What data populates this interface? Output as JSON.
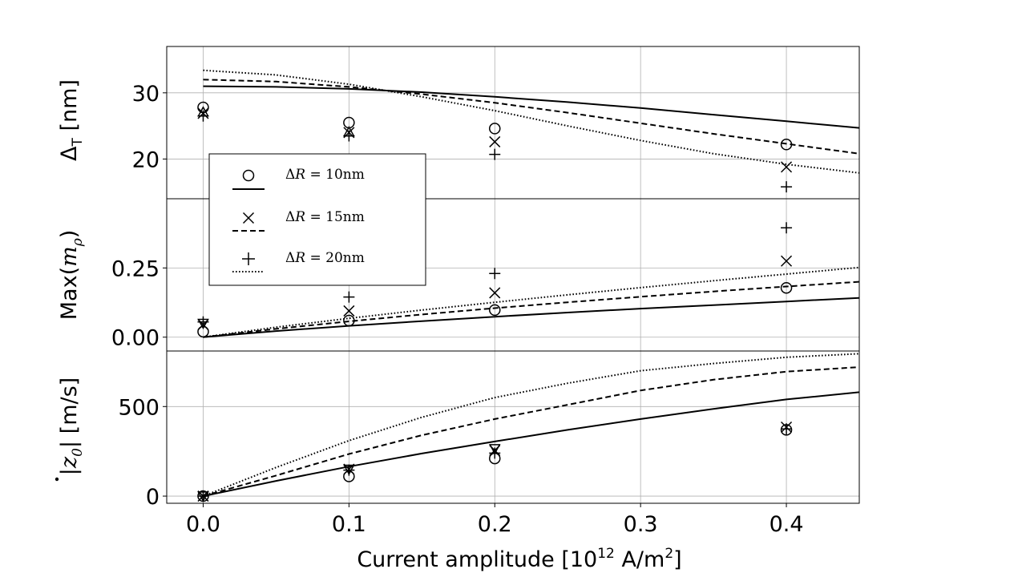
{
  "chart_data": [
    {
      "type": "line",
      "panel": "top",
      "ylabel": "Δ_T [nm]",
      "ylabel_main": "Δ",
      "ylabel_sub": "T",
      "ylabel_unit": " [nm]",
      "xlim": [
        -0.025,
        0.45
      ],
      "ylim": [
        14,
        37
      ],
      "yticks": [
        20,
        30
      ],
      "ytick_labels": [
        "20",
        "30"
      ],
      "grid": true,
      "series": [
        {
          "name": "ΔR = 10nm",
          "line_style": "solid",
          "line": {
            "x": [
              0,
              0.05,
              0.1,
              0.15,
              0.2,
              0.25,
              0.3,
              0.35,
              0.4,
              0.45
            ],
            "y": [
              31.0,
              30.9,
              30.6,
              30.1,
              29.4,
              28.6,
              27.7,
              26.7,
              25.7,
              24.7
            ]
          },
          "markers": [
            {
              "marker": "circle",
              "x": [
                0,
                0.1,
                0.2,
                0.4
              ],
              "y": [
                27.8,
                25.5,
                24.6,
                22.2
              ]
            }
          ]
        },
        {
          "name": "ΔR = 15nm",
          "line_style": "dashed",
          "line": {
            "x": [
              0,
              0.05,
              0.1,
              0.15,
              0.2,
              0.25,
              0.3,
              0.35,
              0.4,
              0.45
            ],
            "y": [
              32.0,
              31.7,
              30.9,
              29.8,
              28.5,
              27.0,
              25.4,
              23.8,
              22.3,
              20.8
            ]
          },
          "markers": [
            {
              "marker": "x",
              "x": [
                0,
                0.1,
                0.2,
                0.4
              ],
              "y": [
                26.9,
                24.0,
                22.6,
                18.8
              ]
            }
          ]
        },
        {
          "name": "ΔR = 20nm",
          "line_style": "dotted",
          "line": {
            "x": [
              0,
              0.05,
              0.1,
              0.15,
              0.2,
              0.25,
              0.3,
              0.35,
              0.4,
              0.45
            ],
            "y": [
              33.4,
              32.7,
              31.3,
              29.4,
              27.3,
              25.0,
              22.8,
              20.8,
              19.2,
              17.9
            ]
          },
          "markers": [
            {
              "marker": "plus",
              "x": [
                0,
                0.1,
                0.2,
                0.4
              ],
              "y": [
                26.5,
                23.5,
                20.7,
                15.8
              ]
            },
            {
              "marker": "triangle-up",
              "x": [
                0,
                0.1
              ],
              "y": [
                27.1,
                24.1
              ]
            }
          ]
        }
      ]
    },
    {
      "type": "line",
      "panel": "middle",
      "ylabel": "Max(m_ρ)",
      "ylabel_main": "Max(",
      "ylabel_var": "m",
      "ylabel_sub": "ρ",
      "ylabel_close": ")",
      "xlim": [
        -0.025,
        0.45
      ],
      "ylim": [
        -0.05,
        0.5
      ],
      "yticks": [
        0.0,
        0.25
      ],
      "ytick_labels": [
        "0.00",
        "0.25"
      ],
      "grid": true,
      "series": [
        {
          "name": "ΔR = 10nm",
          "line_style": "solid",
          "line": {
            "x": [
              0,
              0.05,
              0.1,
              0.15,
              0.2,
              0.25,
              0.3,
              0.35,
              0.4,
              0.45
            ],
            "y": [
              0,
              0.022,
              0.041,
              0.058,
              0.074,
              0.089,
              0.103,
              0.116,
              0.129,
              0.142
            ]
          },
          "markers": [
            {
              "marker": "circle",
              "x": [
                0,
                0.1,
                0.2,
                0.4
              ],
              "y": [
                0.02,
                0.06,
                0.098,
                0.178
              ]
            }
          ]
        },
        {
          "name": "ΔR = 15nm",
          "line_style": "dashed",
          "line": {
            "x": [
              0,
              0.05,
              0.1,
              0.15,
              0.2,
              0.25,
              0.3,
              0.35,
              0.4,
              0.45
            ],
            "y": [
              0,
              0.03,
              0.057,
              0.082,
              0.105,
              0.126,
              0.146,
              0.165,
              0.183,
              0.2
            ]
          },
          "markers": [
            {
              "marker": "x",
              "x": [
                0,
                0.1,
                0.2,
                0.4
              ],
              "y": [
                0.045,
                0.095,
                0.16,
                0.275
              ]
            }
          ]
        },
        {
          "name": "ΔR = 20nm",
          "line_style": "dotted",
          "line": {
            "x": [
              0,
              0.05,
              0.1,
              0.15,
              0.2,
              0.25,
              0.3,
              0.35,
              0.4,
              0.45
            ],
            "y": [
              0,
              0.036,
              0.068,
              0.098,
              0.126,
              0.153,
              0.179,
              0.204,
              0.228,
              0.252
            ]
          },
          "markers": [
            {
              "marker": "plus",
              "x": [
                0,
                0.1,
                0.2,
                0.4
              ],
              "y": [
                0.055,
                0.145,
                0.23,
                0.395
              ]
            },
            {
              "marker": "triangle-down",
              "x": [
                0
              ],
              "y": [
                0.05
              ]
            }
          ]
        }
      ]
    },
    {
      "type": "line",
      "panel": "bottom",
      "ylabel": "|ż_0| [m/s]",
      "ylabel_var": "z",
      "ylabel_sub": "0",
      "ylabel_unit": "| [m/s]",
      "xlabel": "Current amplitude [10^12 A/m^2]",
      "xlabel_prefix": "Current amplitude [10",
      "xlabel_exp": "12",
      "xlabel_mid": " A/m",
      "xlabel_exp2": "2",
      "xlabel_close": "]",
      "xlim": [
        -0.025,
        0.45
      ],
      "ylim": [
        -40,
        810
      ],
      "xticks": [
        0.0,
        0.1,
        0.2,
        0.3,
        0.4
      ],
      "xtick_labels": [
        "0.0",
        "0.1",
        "0.2",
        "0.3",
        "0.4"
      ],
      "yticks": [
        0,
        500
      ],
      "ytick_labels": [
        "0",
        "500"
      ],
      "grid": true,
      "series": [
        {
          "name": "ΔR = 10nm",
          "line_style": "solid",
          "line": {
            "x": [
              0,
              0.05,
              0.1,
              0.15,
              0.2,
              0.25,
              0.3,
              0.35,
              0.4,
              0.45
            ],
            "y": [
              0,
              85,
              165,
              238,
              305,
              370,
              430,
              487,
              540,
              580
            ]
          },
          "markers": [
            {
              "marker": "circle",
              "x": [
                0,
                0.1,
                0.2,
                0.4
              ],
              "y": [
                0,
                110,
                210,
                370
              ]
            }
          ]
        },
        {
          "name": "ΔR = 15nm",
          "line_style": "dashed",
          "line": {
            "x": [
              0,
              0.05,
              0.1,
              0.15,
              0.2,
              0.25,
              0.3,
              0.35,
              0.4,
              0.45
            ],
            "y": [
              0,
              115,
              235,
              340,
              430,
              510,
              590,
              650,
              695,
              720
            ]
          },
          "markers": [
            {
              "marker": "x",
              "x": [
                0,
                0.1,
                0.2,
                0.4
              ],
              "y": [
                0,
                150,
                255,
                385
              ]
            }
          ]
        },
        {
          "name": "ΔR = 20nm",
          "line_style": "dotted",
          "line": {
            "x": [
              0,
              0.05,
              0.1,
              0.15,
              0.2,
              0.25,
              0.3,
              0.35,
              0.4,
              0.45
            ],
            "y": [
              0,
              160,
              310,
              440,
              550,
              630,
              700,
              740,
              775,
              795
            ]
          },
          "markers": [
            {
              "marker": "plus",
              "x": [
                0,
                0.1,
                0.2,
                0.4
              ],
              "y": [
                0,
                145,
                240,
                375
              ]
            },
            {
              "marker": "triangle-down",
              "x": [
                0,
                0.1,
                0.2
              ],
              "y": [
                0,
                150,
                265
              ]
            }
          ]
        }
      ]
    }
  ],
  "legend": {
    "placement": "upper-left-overlapping",
    "entries": [
      {
        "marker": "circle",
        "line_style": "solid",
        "prefix": "Δ",
        "var": "R",
        "suffix": " = 10nm"
      },
      {
        "marker": "x",
        "line_style": "dashed",
        "prefix": "Δ",
        "var": "R",
        "suffix": " = 15nm"
      },
      {
        "marker": "plus",
        "line_style": "dotted",
        "prefix": "Δ",
        "var": "R",
        "suffix": " = 20nm"
      }
    ]
  }
}
